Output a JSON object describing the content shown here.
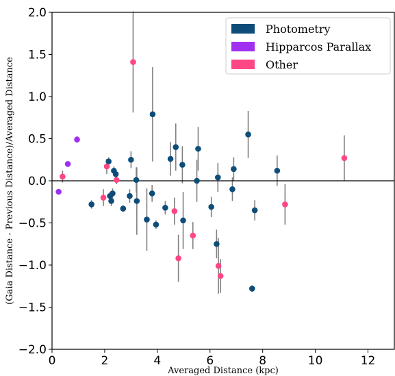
{
  "chart_data": {
    "type": "scatter",
    "xlabel": "Averaged Distance (kpc)",
    "ylabel": "(Gaia Distance - Previous Distance)/Averaged Distance",
    "xlim": [
      0,
      13
    ],
    "ylim": [
      -2.0,
      2.0
    ],
    "x_ticks": [
      "0",
      "2",
      "4",
      "6",
      "8",
      "10",
      "12"
    ],
    "y_ticks": [
      "2.0",
      "1.5",
      "1.0",
      "0.5",
      "0.0",
      "−0.5",
      "−1.0",
      "−1.5",
      "−2.0"
    ],
    "x_tick_values": [
      0,
      2,
      4,
      6,
      8,
      10,
      12
    ],
    "y_tick_values": [
      2.0,
      1.5,
      1.0,
      0.5,
      0.0,
      -0.5,
      -1.0,
      -1.5,
      -2.0
    ],
    "zero_line": 0,
    "grid": false,
    "legend_position": "top-right",
    "errorbar_color": "#808080",
    "series": [
      {
        "name": "Photometry",
        "color": "#0e4d7a",
        "points": [
          {
            "x": 1.5,
            "y": -0.28,
            "err": 0.05
          },
          {
            "x": 2.15,
            "y": 0.23,
            "err": 0.05
          },
          {
            "x": 2.2,
            "y": -0.18,
            "err": 0.05
          },
          {
            "x": 2.25,
            "y": -0.24,
            "err": 0.06
          },
          {
            "x": 2.3,
            "y": -0.15,
            "err": 0.06
          },
          {
            "x": 2.35,
            "y": 0.12,
            "err": 0.05
          },
          {
            "x": 2.42,
            "y": 0.08,
            "err": 0.05
          },
          {
            "x": 2.7,
            "y": -0.33,
            "err": 0.04
          },
          {
            "x": 2.95,
            "y": -0.18,
            "err": 0.08
          },
          {
            "x": 3.0,
            "y": 0.25,
            "err": 0.1
          },
          {
            "x": 3.2,
            "y": 0.01,
            "err": 0.15
          },
          {
            "x": 3.22,
            "y": -0.24,
            "err": 0.4
          },
          {
            "x": 3.6,
            "y": -0.46,
            "err": 0.37
          },
          {
            "x": 3.8,
            "y": -0.15,
            "err": 0.1
          },
          {
            "x": 3.82,
            "y": 0.79,
            "err": 0.56
          },
          {
            "x": 3.95,
            "y": -0.52,
            "err": 0.05
          },
          {
            "x": 4.3,
            "y": -0.32,
            "err": 0.08
          },
          {
            "x": 4.5,
            "y": 0.26,
            "err": 0.2
          },
          {
            "x": 4.7,
            "y": 0.4,
            "err": 0.28
          },
          {
            "x": 4.95,
            "y": 0.19,
            "err": 0.22
          },
          {
            "x": 4.98,
            "y": -0.47,
            "err": 0.34
          },
          {
            "x": 5.5,
            "y": 0.0,
            "err": 0.25
          },
          {
            "x": 5.55,
            "y": 0.38,
            "err": 0.26
          },
          {
            "x": 6.05,
            "y": -0.31,
            "err": 0.12
          },
          {
            "x": 6.25,
            "y": -0.75,
            "err": 0.17
          },
          {
            "x": 6.3,
            "y": 0.04,
            "err": 0.17
          },
          {
            "x": 6.85,
            "y": -0.1,
            "err": 0.14
          },
          {
            "x": 6.9,
            "y": 0.14,
            "err": 0.14
          },
          {
            "x": 7.45,
            "y": 0.55,
            "err": 0.28
          },
          {
            "x": 7.6,
            "y": -1.28,
            "err": 0.04
          },
          {
            "x": 7.7,
            "y": -0.35,
            "err": 0.12
          },
          {
            "x": 8.55,
            "y": 0.12,
            "err": 0.18
          }
        ]
      },
      {
        "name": "Hipparcos Parallax",
        "color": "#a02ff0",
        "points": [
          {
            "x": 0.25,
            "y": -0.13,
            "err": 0.0
          },
          {
            "x": 0.6,
            "y": 0.2,
            "err": 0.0
          },
          {
            "x": 0.95,
            "y": 0.49,
            "err": 0.04
          }
        ]
      },
      {
        "name": "Other",
        "color": "#ff4785",
        "points": [
          {
            "x": 0.4,
            "y": 0.05,
            "err": 0.07
          },
          {
            "x": 1.95,
            "y": -0.2,
            "err": 0.1
          },
          {
            "x": 2.08,
            "y": 0.17,
            "err": 0.09
          },
          {
            "x": 2.45,
            "y": 0.01,
            "err": 0.05
          },
          {
            "x": 3.08,
            "y": 1.41,
            "err": 0.6
          },
          {
            "x": 4.65,
            "y": -0.36,
            "err": 0.16
          },
          {
            "x": 4.8,
            "y": -0.92,
            "err": 0.28
          },
          {
            "x": 5.35,
            "y": -0.65,
            "err": 0.16
          },
          {
            "x": 6.32,
            "y": -1.01,
            "err": 0.33
          },
          {
            "x": 6.4,
            "y": -1.13,
            "err": 0.2
          },
          {
            "x": 8.85,
            "y": -0.28,
            "err": 0.24
          },
          {
            "x": 11.1,
            "y": 0.27,
            "err": 0.27
          }
        ]
      }
    ]
  }
}
